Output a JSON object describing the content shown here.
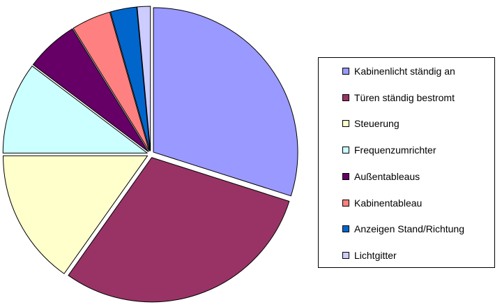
{
  "chart_data": {
    "type": "pie",
    "title": "",
    "start_angle_deg": 0,
    "direction": "clockwise",
    "exploded": true,
    "legend_position": "right",
    "series": [
      {
        "name": "Kabinenlicht ständig an",
        "value": 30.5,
        "color": "#9999FF"
      },
      {
        "name": "Türen ständig bestromt",
        "value": 30.5,
        "color": "#993366"
      },
      {
        "name": "Steuerung",
        "value": 15.5,
        "color": "#FFFFCC"
      },
      {
        "name": "Frequenzumrichter",
        "value": 10.5,
        "color": "#CCFFFF"
      },
      {
        "name": "Außentableaus",
        "value": 6.0,
        "color": "#660066"
      },
      {
        "name": "Kabinentableau",
        "value": 4.5,
        "color": "#FF8080"
      },
      {
        "name": "Anzeigen Stand/Richtung",
        "value": 3.0,
        "color": "#0066CC"
      },
      {
        "name": "Lichtgitter",
        "value": 1.5,
        "color": "#CCCCFF"
      }
    ]
  }
}
